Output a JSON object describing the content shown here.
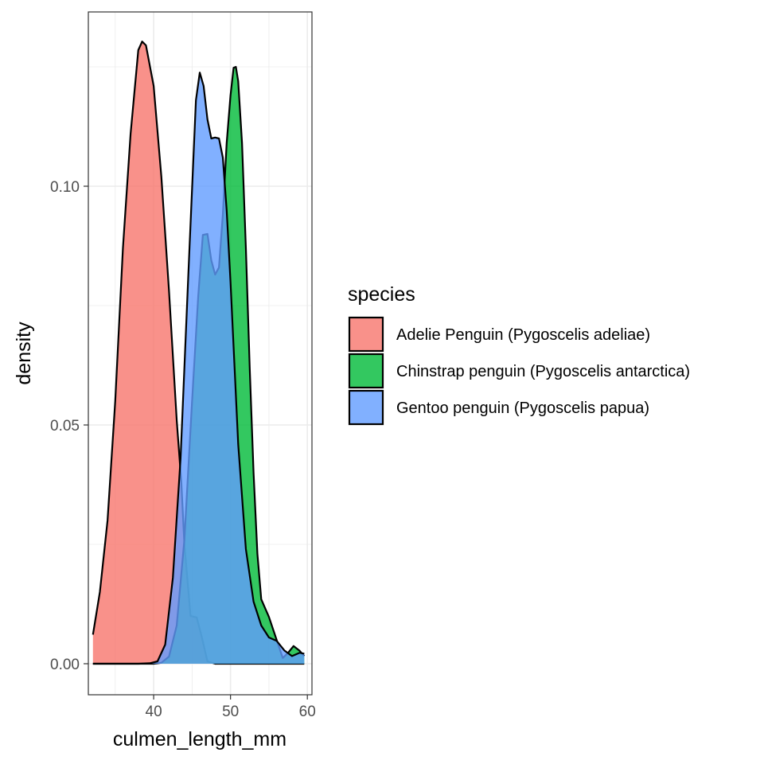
{
  "chart_data": {
    "type": "area",
    "subtype": "density",
    "xlabel": "culmen_length_mm",
    "ylabel": "density",
    "xlim": [
      31.5,
      60.6
    ],
    "ylim": [
      -0.0065,
      0.1365
    ],
    "x_ticks": [
      40,
      50,
      60
    ],
    "x_tick_labels": [
      "40",
      "50",
      "60"
    ],
    "y_ticks": [
      0.0,
      0.05,
      0.1
    ],
    "y_tick_labels": [
      "0.00",
      "0.05",
      "0.10"
    ],
    "grid": true,
    "fill_opacity": 0.8,
    "legend": {
      "title": "species",
      "position": "right"
    },
    "series": [
      {
        "name": "Adelie Penguin (Pygoscelis adeliae)",
        "color": "#F8766D",
        "points": [
          [
            32.1,
            0.0061
          ],
          [
            33,
            0.015
          ],
          [
            34,
            0.03
          ],
          [
            35,
            0.055
          ],
          [
            36,
            0.087
          ],
          [
            37,
            0.111
          ],
          [
            38,
            0.1285
          ],
          [
            38.5,
            0.1303
          ],
          [
            39,
            0.1295
          ],
          [
            40,
            0.121
          ],
          [
            41,
            0.102
          ],
          [
            42,
            0.078
          ],
          [
            43,
            0.051
          ],
          [
            43.6,
            0.038
          ],
          [
            44,
            0.025
          ],
          [
            44.8,
            0.01
          ],
          [
            45.6,
            0.0097
          ],
          [
            46.2,
            0.006
          ],
          [
            47,
            0.0005
          ],
          [
            48,
            0.0
          ],
          [
            49,
            0.0
          ],
          [
            50,
            0.0
          ],
          [
            51,
            0.0
          ],
          [
            52,
            0.0
          ],
          [
            53,
            0.0
          ],
          [
            54,
            0.0
          ],
          [
            55,
            0.0
          ],
          [
            56,
            0.0
          ],
          [
            57,
            0.0
          ],
          [
            58,
            0.0
          ],
          [
            59,
            0.0
          ],
          [
            59.6,
            0.0
          ]
        ]
      },
      {
        "name": "Chinstrap penguin (Pygoscelis antarctica)",
        "color": "#00BA38",
        "points": [
          [
            32.1,
            0.0
          ],
          [
            34,
            0.0
          ],
          [
            36,
            0.0
          ],
          [
            38,
            0.0
          ],
          [
            40,
            0.0
          ],
          [
            41,
            0.0002
          ],
          [
            42,
            0.0015
          ],
          [
            43,
            0.008
          ],
          [
            44,
            0.026
          ],
          [
            45,
            0.055
          ],
          [
            45.8,
            0.077
          ],
          [
            46.4,
            0.0898
          ],
          [
            47,
            0.09
          ],
          [
            47.5,
            0.0845
          ],
          [
            48,
            0.0815
          ],
          [
            48.5,
            0.083
          ],
          [
            49,
            0.094
          ],
          [
            49.5,
            0.109
          ],
          [
            50,
            0.119
          ],
          [
            50.4,
            0.1248
          ],
          [
            50.7,
            0.125
          ],
          [
            51,
            0.122
          ],
          [
            51.5,
            0.109
          ],
          [
            52,
            0.087
          ],
          [
            52.5,
            0.062
          ],
          [
            53,
            0.04
          ],
          [
            53.5,
            0.023
          ],
          [
            54,
            0.0135
          ],
          [
            55,
            0.0098
          ],
          [
            56,
            0.005
          ],
          [
            56.8,
            0.0012
          ],
          [
            57.5,
            0.0023
          ],
          [
            58.2,
            0.0037
          ],
          [
            59,
            0.0027
          ],
          [
            59.6,
            0.0016
          ]
        ]
      },
      {
        "name": "Gentoo penguin (Pygoscelis papua)",
        "color": "#619CFF",
        "points": [
          [
            32.1,
            0.0
          ],
          [
            34,
            0.0
          ],
          [
            36,
            0.0
          ],
          [
            38,
            0.0
          ],
          [
            39.5,
            0.0001
          ],
          [
            40.5,
            0.0005
          ],
          [
            41.5,
            0.004
          ],
          [
            42.5,
            0.018
          ],
          [
            43.5,
            0.043
          ],
          [
            44.5,
            0.081
          ],
          [
            45.5,
            0.118
          ],
          [
            46,
            0.1238
          ],
          [
            46.5,
            0.121
          ],
          [
            47,
            0.114
          ],
          [
            47.5,
            0.11
          ],
          [
            48,
            0.1102
          ],
          [
            48.5,
            0.11
          ],
          [
            49,
            0.106
          ],
          [
            49.5,
            0.095
          ],
          [
            50,
            0.08
          ],
          [
            50.5,
            0.063
          ],
          [
            51,
            0.046
          ],
          [
            52,
            0.024
          ],
          [
            53,
            0.013
          ],
          [
            54,
            0.008
          ],
          [
            55,
            0.0055
          ],
          [
            56,
            0.0048
          ],
          [
            57,
            0.0028
          ],
          [
            58,
            0.0016
          ],
          [
            59,
            0.0023
          ],
          [
            59.6,
            0.0021
          ]
        ]
      }
    ]
  }
}
